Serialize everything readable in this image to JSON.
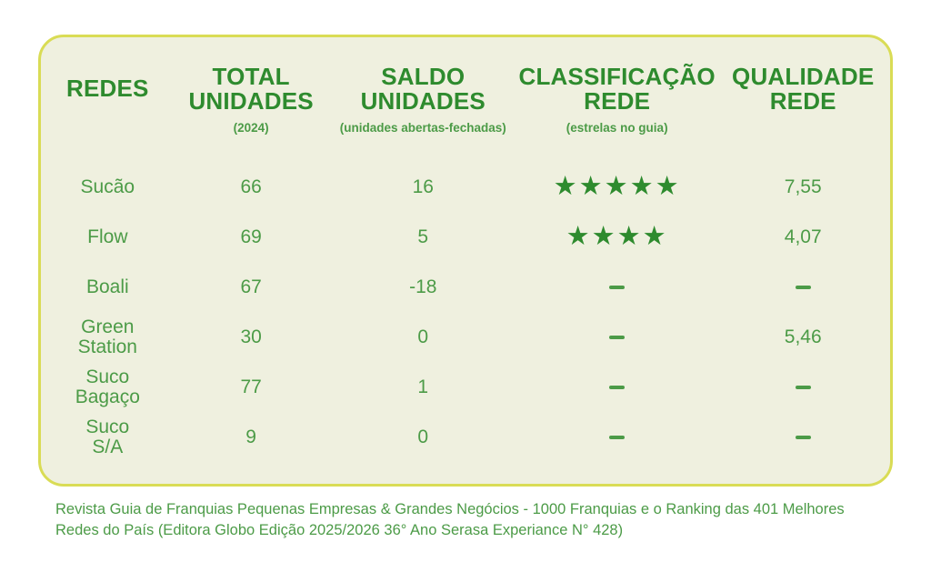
{
  "colors": {
    "card_background": "#eff0df",
    "card_border": "#d9dc55",
    "header_green": "#2e8b2e",
    "body_green": "#4c9b47",
    "star_green": "#2e8b2e",
    "page_background": "#ffffff"
  },
  "icons": {
    "star": "★"
  },
  "card": {
    "table": {
      "columns": [
        {
          "id": "redes",
          "title": "REDES",
          "subtitle": ""
        },
        {
          "id": "total_unidades",
          "title": "TOTAL\nUNIDADES",
          "subtitle": "(2024)"
        },
        {
          "id": "saldo_unidades",
          "title": "SALDO\nUNIDADES",
          "subtitle": "(unidades abertas-fechadas)"
        },
        {
          "id": "classificacao_rede",
          "title": "CLASSIFICAÇÃO\nREDE",
          "subtitle": "(estrelas no guia)"
        },
        {
          "id": "qualidade_rede",
          "title": "QUALIDADE\nREDE",
          "subtitle": ""
        }
      ],
      "rows": [
        {
          "rede": "Sucão",
          "total_unidades": "66",
          "saldo_unidades": "16",
          "classificacao_estrelas": 5,
          "qualidade_rede": "7,55"
        },
        {
          "rede": "Flow",
          "total_unidades": "69",
          "saldo_unidades": "5",
          "classificacao_estrelas": 4,
          "qualidade_rede": "4,07"
        },
        {
          "rede": "Boali",
          "total_unidades": "67",
          "saldo_unidades": "-18",
          "classificacao_estrelas": null,
          "qualidade_rede": null
        },
        {
          "rede": "Green\nStation",
          "total_unidades": "30",
          "saldo_unidades": "0",
          "classificacao_estrelas": null,
          "qualidade_rede": "5,46"
        },
        {
          "rede": "Suco\nBagaço",
          "total_unidades": "77",
          "saldo_unidades": "1",
          "classificacao_estrelas": null,
          "qualidade_rede": null
        },
        {
          "rede": "Suco\nS/A",
          "total_unidades": "9",
          "saldo_unidades": "0",
          "classificacao_estrelas": null,
          "qualidade_rede": null
        }
      ]
    }
  },
  "footer": {
    "source_text": "Revista Guia de Franquias Pequenas Empresas & Grandes Negócios - 1000 Franquias e o Ranking das 401 Melhores\nRedes do País (Editora Globo Edição 2025/2026 36° Ano Serasa Experiance N° 428)"
  },
  "chart_data": {
    "type": "table",
    "title": "Ranking de redes de franquias de sucos",
    "columns": [
      "REDES",
      "TOTAL UNIDADES (2024)",
      "SALDO UNIDADES (unidades abertas-fechadas)",
      "CLASSIFICAÇÃO REDE (estrelas no guia)",
      "QUALIDADE REDE"
    ],
    "rows": [
      [
        "Sucão",
        66,
        16,
        "5 estrelas",
        7.55
      ],
      [
        "Flow",
        69,
        5,
        "4 estrelas",
        4.07
      ],
      [
        "Boali",
        67,
        -18,
        null,
        null
      ],
      [
        "Green Station",
        30,
        0,
        null,
        5.46
      ],
      [
        "Suco Bagaço",
        77,
        1,
        null,
        null
      ],
      [
        "Suco S/A",
        9,
        0,
        null,
        null
      ]
    ],
    "source": "Revista Guia de Franquias Pequenas Empresas & Grandes Negócios - 1000 Franquias e o Ranking das 401 Melhores Redes do País (Editora Globo Edição 2025/2026 36° Ano Serasa Experiance N° 428)"
  }
}
